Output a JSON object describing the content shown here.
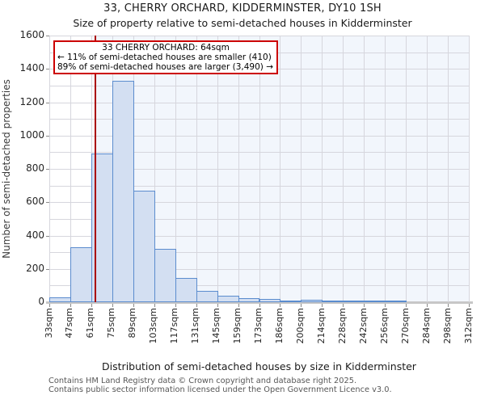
{
  "title": "33, CHERRY ORCHARD, KIDDERMINSTER, DY10 1SH",
  "subtitle": "Size of property relative to semi-detached houses in Kidderminster",
  "annotation": {
    "line1": "33 CHERRY ORCHARD: 64sqm",
    "line2": "← 11% of semi-detached houses are smaller (410)",
    "line3": "89% of semi-detached houses are larger (3,490) →"
  },
  "chart_data": {
    "type": "bar",
    "title": "33, CHERRY ORCHARD, KIDDERMINSTER, DY10 1SH",
    "subtitle": "Size of property relative to semi-detached houses in Kidderminster",
    "xlabel": "Distribution of semi-detached houses by size in Kidderminster",
    "ylabel": "Number of semi-detached properties",
    "bin_edges_sqm": [
      33,
      47,
      61,
      75,
      89,
      103,
      117,
      131,
      145,
      159,
      173,
      186,
      200,
      214,
      228,
      242,
      256,
      270,
      284,
      298,
      312
    ],
    "x_tick_labels": [
      "33sqm",
      "47sqm",
      "61sqm",
      "75sqm",
      "89sqm",
      "103sqm",
      "117sqm",
      "131sqm",
      "145sqm",
      "159sqm",
      "173sqm",
      "186sqm",
      "200sqm",
      "214sqm",
      "228sqm",
      "242sqm",
      "256sqm",
      "270sqm",
      "284sqm",
      "298sqm",
      "312sqm"
    ],
    "values": [
      30,
      330,
      890,
      1330,
      670,
      320,
      145,
      70,
      40,
      25,
      20,
      10,
      15,
      10,
      5,
      5,
      5,
      0,
      0,
      0
    ],
    "y_ticks": [
      0,
      200,
      400,
      600,
      800,
      1000,
      1200,
      1400,
      1600
    ],
    "y_grid_interval": 100,
    "ylim": [
      0,
      1600
    ],
    "grid": true,
    "marker_value_sqm": 64,
    "marker_label": "33 CHERRY ORCHARD: 64sqm",
    "smaller_pct": "11%",
    "smaller_count": 410,
    "larger_pct": "89%",
    "larger_count": 3490,
    "colors": {
      "bar_fill": "#d3dff2",
      "bar_edge": "#5b8cce",
      "marker_line": "#aa0000",
      "annotation_border": "#cc0000",
      "region_right_of_marker": "#f2f6fc",
      "gridline": "#d6d6dd"
    }
  },
  "footer": {
    "line1": "Contains HM Land Registry data © Crown copyright and database right 2025.",
    "line2": "Contains public sector information licensed under the Open Government Licence v3.0."
  }
}
